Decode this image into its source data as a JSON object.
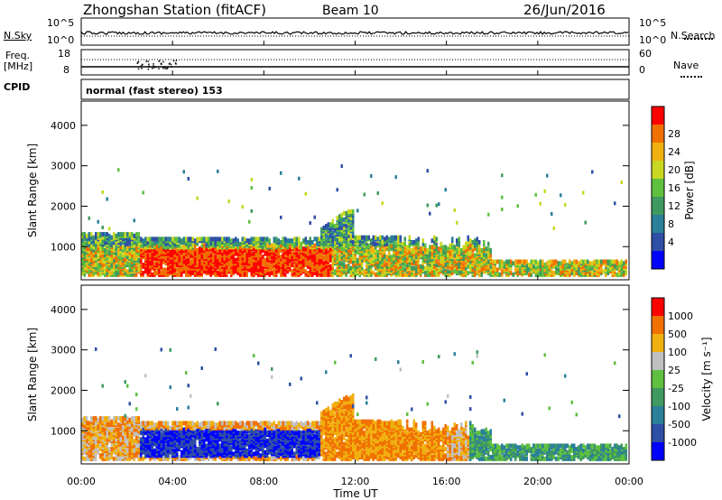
{
  "header": {
    "station": "Zhongshan Station (fitACF)",
    "beam": "Beam 10",
    "date": "26/Jun/2016"
  },
  "param_panels": {
    "nsky_label": "N.Sky",
    "nsearch_label": "N.Search",
    "nsky_ticks": [
      "10^5",
      "10^0"
    ],
    "nsky_right_ticks": [
      "10^5",
      "10^0"
    ],
    "freq_label": "Freq.",
    "freq_unit": "[MHz]",
    "freq_ticks": [
      "18",
      "8"
    ],
    "nave_label": "Nave",
    "nave_ticks": [
      "60",
      "0"
    ],
    "cpid_label": "CPID",
    "cpid_text": "normal (fast stereo) 153"
  },
  "chart_data": [
    {
      "type": "heatmap",
      "name": "power",
      "ylabel": "Slant Range [km]",
      "y_ticks": [
        "1000",
        "2000",
        "3000",
        "4000"
      ],
      "colorbar_label": "Power [dB]",
      "colorbar_ticks": [
        "28",
        "24",
        "20",
        "16",
        "12",
        "8",
        "4"
      ],
      "colors": [
        "#0000ff",
        "#2f4fa6",
        "#2a7f9a",
        "#3f9a5f",
        "#5fc040",
        "#c8d820",
        "#f0b010",
        "#f07000",
        "#ff0000"
      ]
    },
    {
      "type": "heatmap",
      "name": "velocity",
      "ylabel": "Slant Range [km]",
      "y_ticks": [
        "1000",
        "2000",
        "3000",
        "4000"
      ],
      "colorbar_label": "Velocity [m s⁻¹]",
      "colorbar_ticks": [
        "1000",
        "500",
        "100",
        "25",
        "-25",
        "-100",
        "-500",
        "-1000"
      ],
      "colors": [
        "#0000ff",
        "#2f4fa6",
        "#2a7f9a",
        "#3f9a5f",
        "#5fc040",
        "#c0c0c0",
        "#f0b010",
        "#f07000",
        "#ff0000"
      ]
    }
  ],
  "x_axis": {
    "label": "Time UT",
    "ticks": [
      "00:00",
      "04:00",
      "08:00",
      "12:00",
      "16:00",
      "20:00",
      "00:00"
    ]
  }
}
